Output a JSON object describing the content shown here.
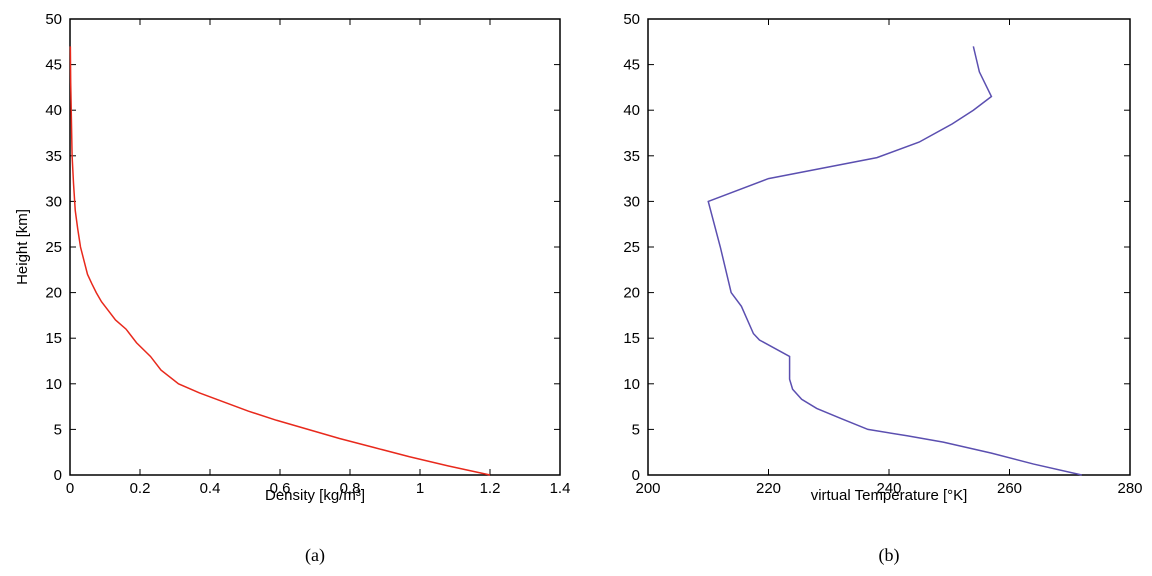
{
  "chart_data": [
    {
      "type": "line",
      "panel_label": "(a)",
      "xlabel": "Density [kg/m³]",
      "ylabel": "Height [km]",
      "xlim": [
        0,
        1.4
      ],
      "ylim": [
        0,
        50
      ],
      "xticks": [
        "0",
        "0.2",
        "0.4",
        "0.6",
        "0.8",
        "1",
        "1.2",
        "1.4"
      ],
      "yticks": [
        "0",
        "5",
        "10",
        "15",
        "20",
        "25",
        "30",
        "35",
        "40",
        "45",
        "50"
      ],
      "grid": false,
      "color": "#e8291c",
      "series": [
        {
          "x": [
            1.2,
            1.08,
            0.97,
            0.87,
            0.77,
            0.68,
            0.59,
            0.51,
            0.44,
            0.37,
            0.31,
            0.26,
            0.23,
            0.19,
            0.16,
            0.13,
            0.11,
            0.09,
            0.075,
            0.062,
            0.05,
            0.04,
            0.03,
            0.022,
            0.015,
            0.01,
            0.006,
            0.004,
            0.002,
            0.001
          ],
          "y": [
            0,
            1,
            2,
            3,
            4,
            5,
            6,
            7,
            8,
            9,
            10,
            11.5,
            13,
            14.5,
            16,
            17,
            18,
            19,
            20,
            21,
            22,
            23.5,
            25,
            27,
            29,
            32,
            35,
            39,
            43,
            47
          ]
        }
      ]
    },
    {
      "type": "line",
      "panel_label": "(b)",
      "xlabel": "virtual Temperature [°K]",
      "ylabel": "",
      "xlim": [
        200,
        280
      ],
      "ylim": [
        0,
        50
      ],
      "xticks": [
        "200",
        "220",
        "240",
        "260",
        "280"
      ],
      "yticks": [
        "0",
        "5",
        "10",
        "15",
        "20",
        "25",
        "30",
        "35",
        "40",
        "45",
        "50"
      ],
      "grid": false,
      "color": "#5b4fb0",
      "series": [
        {
          "x": [
            272,
            264,
            257,
            249,
            243,
            236.5,
            232,
            228,
            225.5,
            224,
            223.5,
            223.5,
            218.5,
            217.5,
            215.5,
            213.8,
            212,
            210,
            220,
            238,
            245,
            250.5,
            254,
            257,
            255,
            254
          ],
          "y": [
            0,
            1.2,
            2.4,
            3.6,
            4.3,
            5,
            6.2,
            7.3,
            8.3,
            9.4,
            10.5,
            13,
            14.8,
            15.5,
            18.5,
            20,
            25,
            30,
            32.5,
            34.8,
            36.5,
            38.5,
            40,
            41.5,
            44.2,
            47
          ]
        }
      ]
    }
  ]
}
